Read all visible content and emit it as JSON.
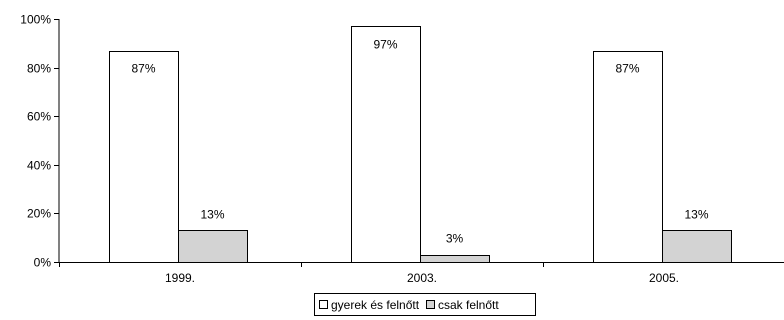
{
  "chart_data": {
    "type": "bar",
    "categories": [
      "1999.",
      "2003.",
      "2005."
    ],
    "series": [
      {
        "name": "gyerek és felnőtt",
        "values": [
          87,
          97,
          87
        ],
        "labels": [
          "87%",
          "97%",
          "87%"
        ],
        "color": "#ffffff"
      },
      {
        "name": "csak felnőtt",
        "values": [
          13,
          3,
          13
        ],
        "labels": [
          "13%",
          "3%",
          "13%"
        ],
        "color": "#d3d3d3"
      }
    ],
    "ylim": [
      0,
      100
    ],
    "yticks": [
      {
        "value": 0,
        "label": "0%"
      },
      {
        "value": 20,
        "label": "20%"
      },
      {
        "value": 40,
        "label": "40%"
      },
      {
        "value": 60,
        "label": "60%"
      },
      {
        "value": 80,
        "label": "80%"
      },
      {
        "value": 100,
        "label": "100%"
      }
    ],
    "grid": false,
    "legend_position": "bottom-center",
    "bar_outline_color": "#000000"
  }
}
